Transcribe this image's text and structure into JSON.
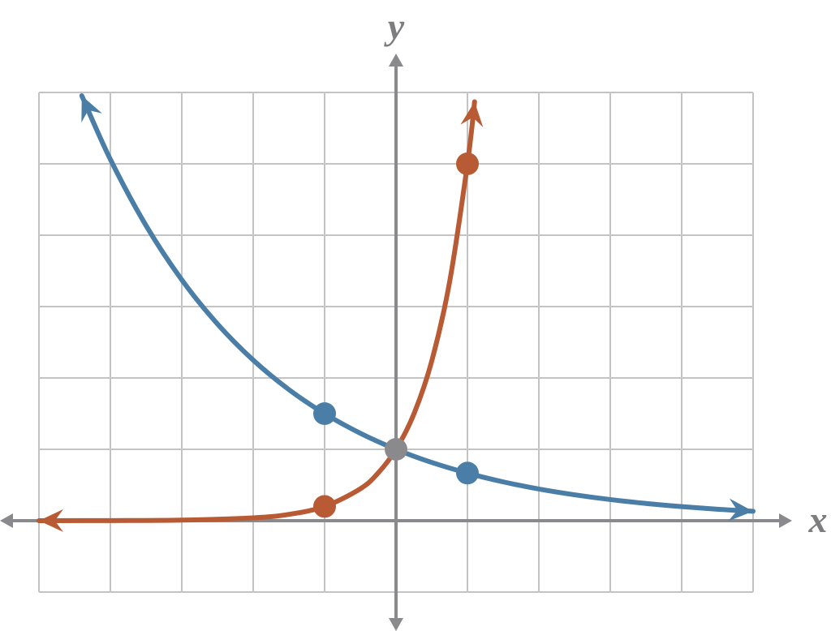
{
  "chart_data": {
    "type": "line",
    "xlabel": "x",
    "ylabel": "y",
    "xlim": [
      -5,
      5
    ],
    "ylim": [
      -1,
      6
    ],
    "xticks": [
      -5,
      -4,
      -3,
      -2,
      -1,
      0,
      1,
      2,
      3,
      4,
      5
    ],
    "yticks": [
      -1,
      0,
      1,
      2,
      3,
      4,
      5,
      6
    ],
    "grid": true,
    "series": [
      {
        "color": "#4a7ea6",
        "x": [
          -4.4,
          -4,
          -3.5,
          -3,
          -2.5,
          -2,
          -1.5,
          -1,
          -0.5,
          0,
          0.5,
          1,
          1.5,
          2,
          2.5,
          3,
          3.5,
          4,
          4.5,
          5
        ],
        "values": [
          5.954,
          5.0625,
          4.134,
          3.375,
          2.756,
          2.25,
          1.837,
          1.5,
          1.225,
          1,
          0.816,
          0.667,
          0.544,
          0.444,
          0.363,
          0.296,
          0.242,
          0.198,
          0.161,
          0.132
        ]
      },
      {
        "color": "#b85a33",
        "x": [
          -5,
          -4,
          -3,
          -2,
          -1.5,
          -1,
          -0.5,
          -0.25,
          0,
          0.25,
          0.5,
          0.75,
          1,
          1.1
        ],
        "values": [
          0.0003,
          0.0016,
          0.008,
          0.04,
          0.089,
          0.2,
          0.447,
          0.669,
          1,
          1.495,
          2.236,
          3.344,
          5,
          5.87
        ]
      }
    ],
    "points": {
      "x": [
        -1,
        1,
        -1,
        1,
        0
      ],
      "values": [
        1.5,
        0.667,
        0.2,
        5,
        1
      ],
      "colors": [
        "#4a7ea6",
        "#4a7ea6",
        "#b85a33",
        "#b85a33",
        "#8a8a8c"
      ]
    }
  }
}
